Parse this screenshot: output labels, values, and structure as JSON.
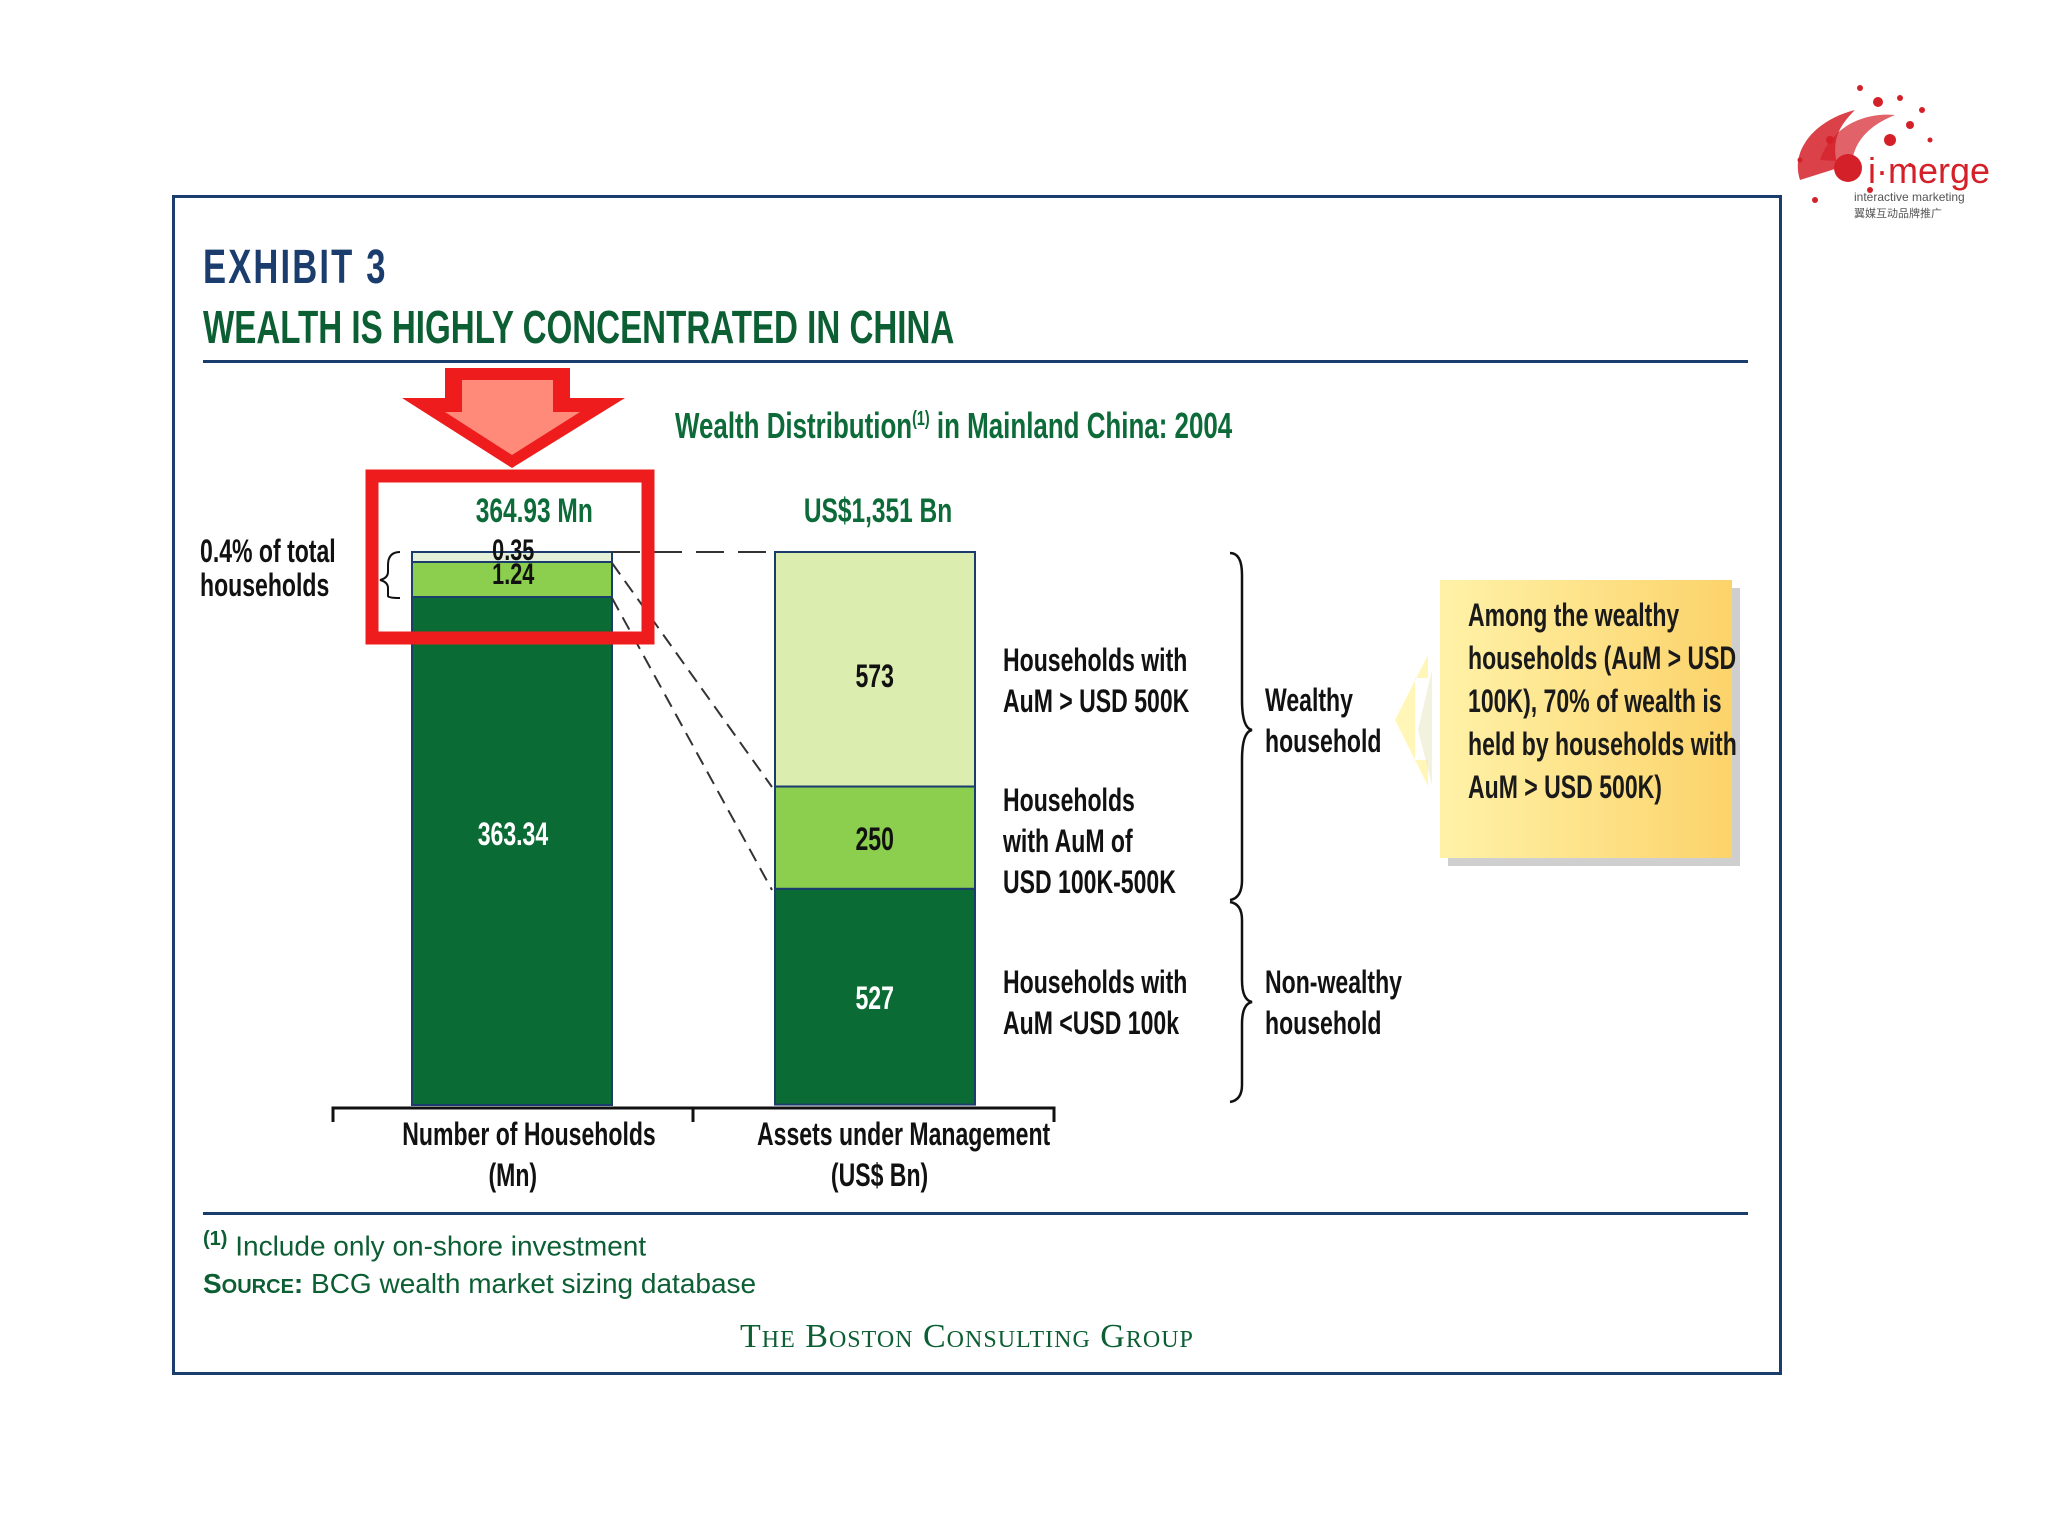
{
  "brand": {
    "logo_word": "i·merge",
    "logo_sub1": "interactive marketing",
    "logo_sub2": "翼媒互动品牌推广",
    "accent": "#d42029"
  },
  "exhibit": {
    "label": "EXHIBIT 3",
    "headline": "WEALTH IS HIGHLY CONCENTRATED IN CHINA"
  },
  "colors": {
    "dark_green": "#0a6b35",
    "mid_green": "#8cce4e",
    "light_green": "#dcedb0",
    "pale": "#e4f1d8",
    "navy": "#1b3d6e",
    "highlight_red": "#ee1c1c"
  },
  "chart_data": {
    "type": "bar",
    "title": "Wealth Distribution",
    "title_footnote_mark": "(1)",
    "title_suffix": "in Mainland China: 2004",
    "categories": [
      "Number of Households (Mn)",
      "Assets under Management (US$ Bn)"
    ],
    "bars": [
      {
        "category_line1": "Number of Households",
        "category_line2": "(Mn)",
        "total_label": "364.93 Mn",
        "total": 364.93,
        "segments": [
          {
            "name": "Households with AuM <USD 100k",
            "value": 363.34,
            "label": "363.34"
          },
          {
            "name": "Households with AuM of USD 100K-500K",
            "value": 1.24,
            "label": "1.24"
          },
          {
            "name": "Households with AuM > USD 500K",
            "value": 0.35,
            "label": "0.35"
          }
        ]
      },
      {
        "category_line1": "Assets under Management",
        "category_line2": "(US$ Bn)",
        "total_label": "US$1,351 Bn",
        "total": 1351,
        "segments": [
          {
            "name": "Households with AuM <USD 100k",
            "value": 527,
            "label": "527"
          },
          {
            "name": "Households with AuM of USD 100K-500K",
            "value": 250,
            "label": "250"
          },
          {
            "name": "Households with AuM > USD 500K",
            "value": 573,
            "label": "573"
          }
        ]
      }
    ],
    "bracket_label_line1": "0.4% of total",
    "bracket_label_line2": "households",
    "segment_labels": [
      {
        "line1": "Households with",
        "line2": "AuM > USD 500K",
        "line3": ""
      },
      {
        "line1": "Households",
        "line2": "with AuM of",
        "line3": "USD 100K-500K"
      },
      {
        "line1": "Households with",
        "line2": "AuM <USD 100k",
        "line3": ""
      }
    ],
    "group_labels": [
      {
        "line1": "Wealthy",
        "line2": "household"
      },
      {
        "line1": "Non-wealthy",
        "line2": "household"
      }
    ]
  },
  "callout": {
    "text": "Among the wealthy households (AuM > USD 100K), 70% of wealth is held by households with AuM > USD 500K)"
  },
  "footer": {
    "footnote_mark": "(1)",
    "footnote": "Include only on-shore investment",
    "source_label": "Source:",
    "source_text": "BCG wealth market sizing database",
    "company": "The Boston Consulting Group"
  }
}
